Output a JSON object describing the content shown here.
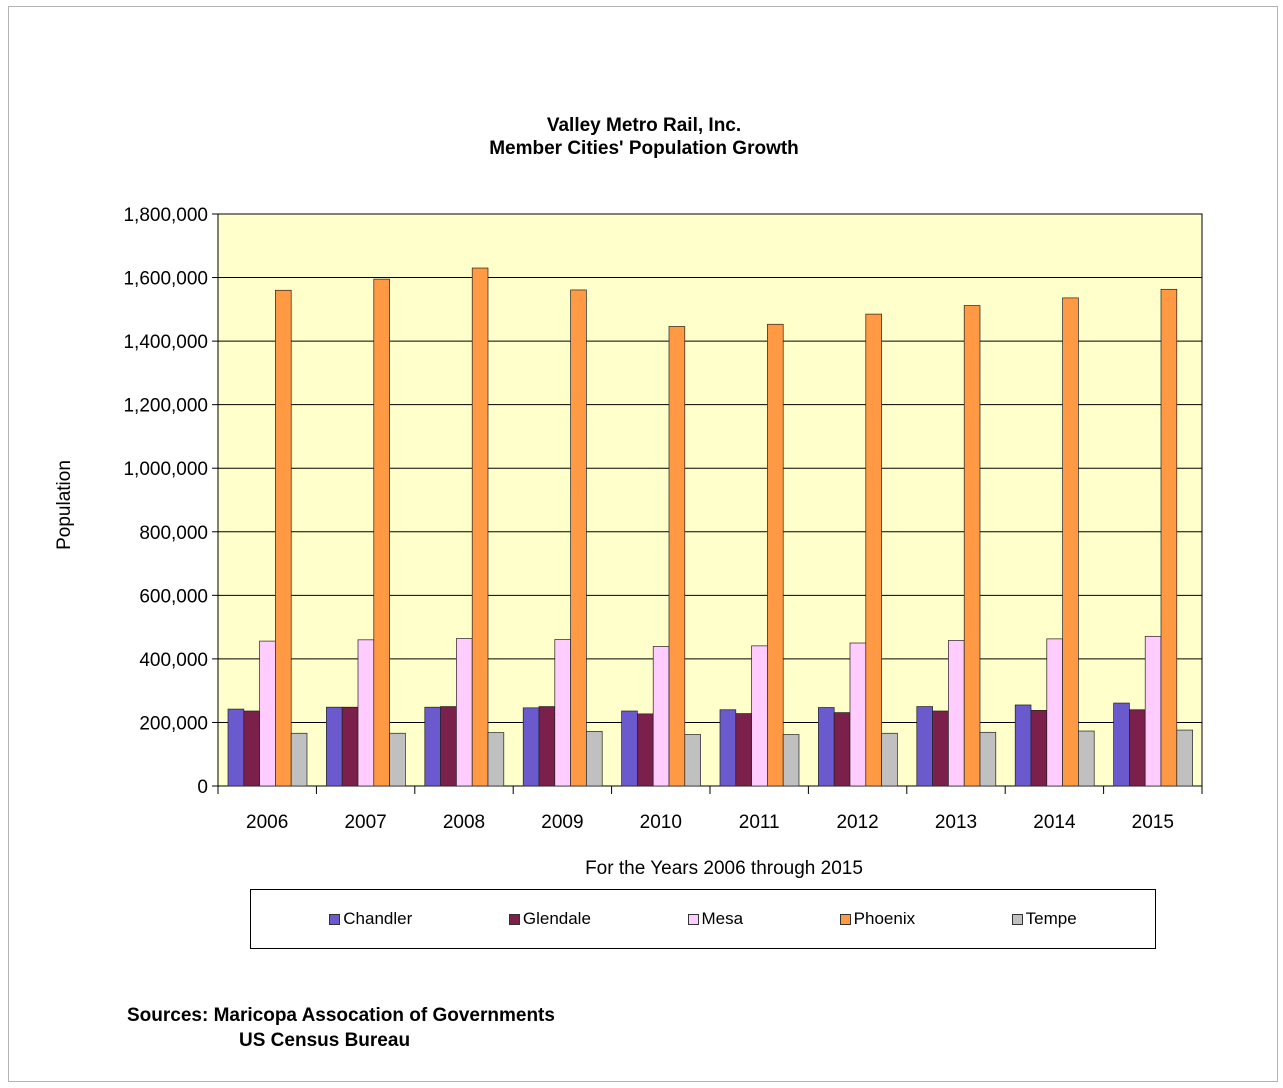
{
  "chart_data": {
    "type": "bar",
    "title": "Valley Metro Rail, Inc.",
    "subtitle": "Member Cities' Population Growth",
    "xlabel": "For the Years 2006 through 2015",
    "ylabel": "Population",
    "ylim": [
      0,
      1800000
    ],
    "yticks": [
      0,
      200000,
      400000,
      600000,
      800000,
      1000000,
      1200000,
      1400000,
      1600000,
      1800000
    ],
    "ytick_labels": [
      "0",
      "200,000",
      "400,000",
      "600,000",
      "800,000",
      "1,000,000",
      "1,200,000",
      "1,400,000",
      "1,600,000",
      "1,800,000"
    ],
    "grid": true,
    "legend_position": "bottom",
    "plot_background": "#ffffcc",
    "categories": [
      "2006",
      "2007",
      "2008",
      "2009",
      "2010",
      "2011",
      "2012",
      "2013",
      "2014",
      "2015"
    ],
    "series": [
      {
        "name": "Chandler",
        "color": "#6a5acd",
        "values": [
          242000,
          248000,
          248000,
          246000,
          236000,
          240000,
          247000,
          250000,
          255000,
          261000
        ]
      },
      {
        "name": "Glendale",
        "color": "#7b1f4b",
        "values": [
          236000,
          248000,
          250000,
          250000,
          227000,
          228000,
          231000,
          236000,
          238000,
          240000
        ]
      },
      {
        "name": "Mesa",
        "color": "#ffccff",
        "values": [
          456000,
          460000,
          464000,
          461000,
          439000,
          441000,
          450000,
          458000,
          463000,
          471000
        ]
      },
      {
        "name": "Phoenix",
        "color": "#ff9944",
        "values": [
          1560000,
          1595000,
          1630000,
          1561000,
          1446000,
          1453000,
          1485000,
          1512000,
          1536000,
          1563000
        ]
      },
      {
        "name": "Tempe",
        "color": "#c0c0c0",
        "values": [
          166000,
          166000,
          168000,
          172000,
          162000,
          162000,
          166000,
          169000,
          173000,
          176000
        ]
      }
    ]
  },
  "sources": {
    "line1": "Sources: Maricopa Assocation of Governments",
    "line2": "US Census Bureau"
  }
}
